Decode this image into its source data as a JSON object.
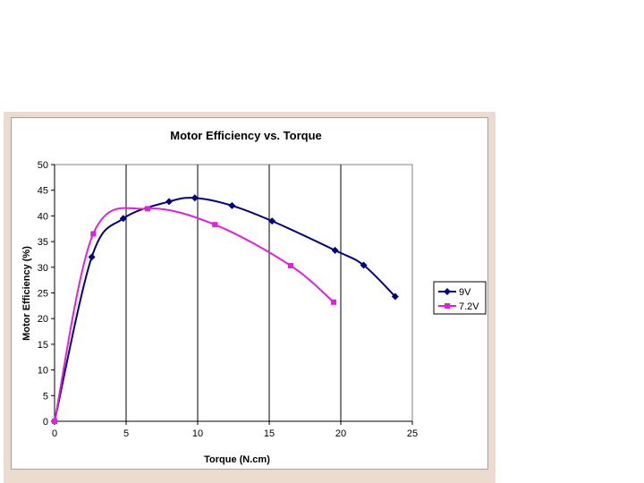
{
  "chart_data": {
    "type": "line",
    "title": "Motor Efficiency vs. Torque",
    "xlabel": "Torque (N.cm)",
    "ylabel": "Motor Efficiency (%)",
    "xlim": [
      0,
      25
    ],
    "ylim": [
      0,
      50
    ],
    "xticks": [
      0,
      5,
      10,
      15,
      20,
      25
    ],
    "yticks": [
      0,
      5,
      10,
      15,
      20,
      25,
      30,
      35,
      40,
      45,
      50
    ],
    "grid": "vertical",
    "legend_position": "right",
    "series": [
      {
        "name": "9V",
        "color": "#000080",
        "marker": "diamond",
        "points": [
          [
            0,
            0
          ],
          [
            2.6,
            32
          ],
          [
            4.8,
            39.5
          ],
          [
            8,
            42.8
          ],
          [
            9.8,
            43.5
          ],
          [
            12.4,
            42
          ],
          [
            15.2,
            39
          ],
          [
            19.6,
            33.3
          ],
          [
            21.6,
            30.4
          ],
          [
            23.8,
            24.3
          ]
        ]
      },
      {
        "name": "7.2V",
        "color": "#e020e0",
        "marker": "square",
        "points": [
          [
            0,
            0
          ],
          [
            2.7,
            36.5
          ],
          [
            6.5,
            41.4
          ],
          [
            11.2,
            38.3
          ],
          [
            16.5,
            30.3
          ],
          [
            19.5,
            23.2
          ]
        ]
      }
    ]
  }
}
